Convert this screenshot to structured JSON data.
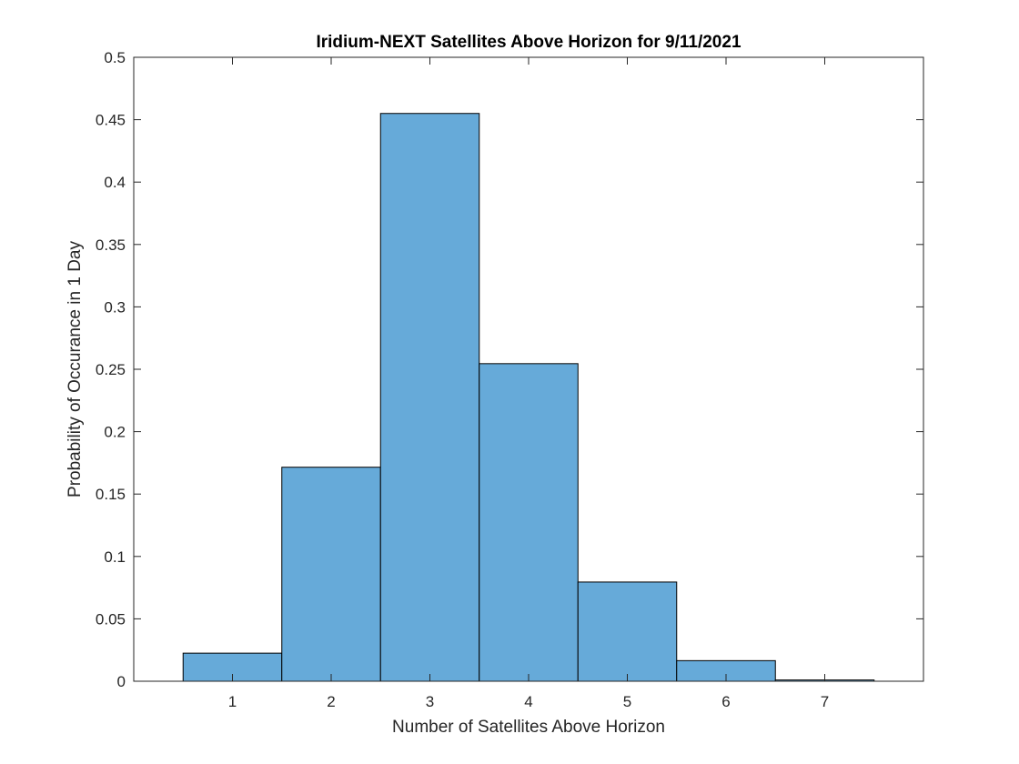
{
  "chart_data": {
    "type": "bar",
    "title": "Iridium-NEXT Satellites Above Horizon for 9/11/2021",
    "xlabel": "Number of Satellites Above Horizon",
    "ylabel": "Probability of Occurance in 1 Day",
    "categories": [
      "1",
      "2",
      "3",
      "4",
      "5",
      "6",
      "7"
    ],
    "x": [
      1,
      2,
      3,
      4,
      5,
      6,
      7
    ],
    "values": [
      0.0225,
      0.1715,
      0.455,
      0.2545,
      0.0795,
      0.0165,
      0.001
    ],
    "xlim": [
      0,
      8
    ],
    "ylim": [
      0,
      0.5
    ],
    "yticks": [
      0,
      0.05,
      0.1,
      0.15,
      0.2,
      0.25,
      0.3,
      0.35,
      0.4,
      0.45,
      0.5
    ],
    "ytick_labels": [
      "0",
      "0.05",
      "0.1",
      "0.15",
      "0.2",
      "0.25",
      "0.3",
      "0.35",
      "0.4",
      "0.45",
      "0.5"
    ],
    "xticks": [
      1,
      2,
      3,
      4,
      5,
      6,
      7
    ],
    "xtick_labels": [
      "1",
      "2",
      "3",
      "4",
      "5",
      "6",
      "7"
    ],
    "bar_color": "#66aad9",
    "edge_color": "#000000",
    "grid": false,
    "legend": "none"
  }
}
